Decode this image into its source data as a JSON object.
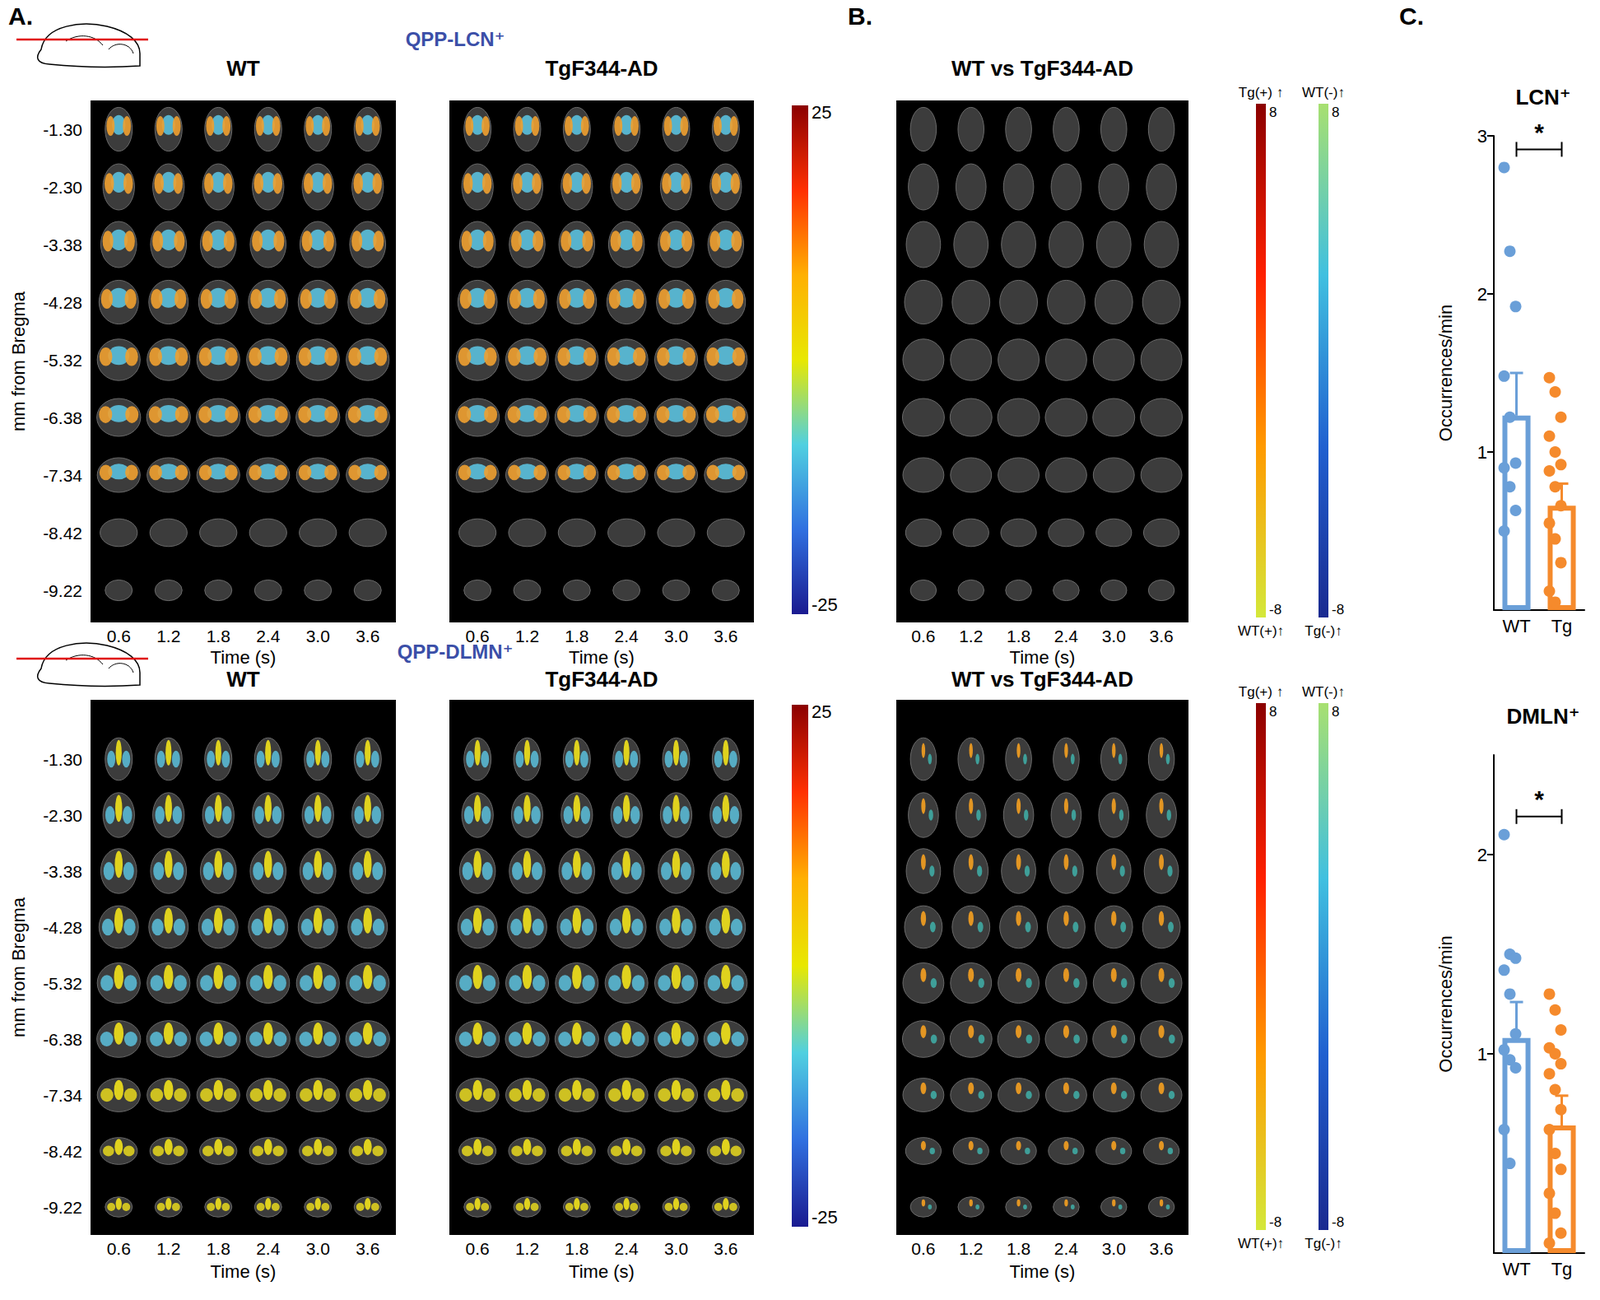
{
  "figure": {
    "panel_labels": [
      "A.",
      "B.",
      "C."
    ],
    "bregma_axis_label": "mm from Bregma",
    "bregma_mm": [
      {
        "value": -1.3,
        "label": "-1.30"
      },
      {
        "value": -2.3,
        "label": "-2.30"
      },
      -3.38,
      -4.28,
      -5.32,
      -6.38,
      -7.34,
      -8.42,
      -9.22
    ],
    "time_label": "Time (s)",
    "time_s": [
      0.6,
      1.2,
      1.8,
      2.4,
      {
        "value": 3.0,
        "label": "3.0"
      },
      3.6
    ],
    "rows": [
      {
        "title": "QPP-LCN⁺",
        "groups": [
          "WT",
          "TgF344-AD"
        ],
        "colorbar": {
          "range": [
            -25,
            25
          ],
          "ticks": [
            -25,
            25
          ]
        },
        "comparison": {
          "title": "WT vs TgF344-AD",
          "colorbar_pos": {
            "range": [
              -8,
              8
            ],
            "ticks": [
              -8,
              8
            ],
            "top_label": "Tg(+) ↑",
            "bottom_label": "WT(+)↑"
          },
          "colorbar_neg": {
            "range": [
              -8,
              8
            ],
            "ticks": [
              -8,
              8
            ],
            "top_label": "WT(-)↑",
            "bottom_label": "Tg(-)↑"
          }
        }
      },
      {
        "title": "QPP-DLMN⁺",
        "groups": [
          "WT",
          "TgF344-AD"
        ],
        "colorbar": {
          "range": [
            -25,
            25
          ],
          "ticks": [
            -25,
            25
          ]
        },
        "comparison": {
          "title": "WT vs TgF344-AD",
          "colorbar_pos": {
            "range": [
              -8,
              8
            ],
            "ticks": [
              -8,
              8
            ],
            "top_label": "Tg(+) ↑",
            "bottom_label": "WT(+)↑"
          },
          "colorbar_neg": {
            "range": [
              -8,
              8
            ],
            "ticks": [
              -8,
              8
            ],
            "top_label": "WT(-)↑",
            "bottom_label": "Tg(-)↑"
          }
        }
      }
    ]
  },
  "chart_data": [
    {
      "type": "bar",
      "title": "LCN⁺",
      "categories": [
        "WT",
        "Tg"
      ],
      "values": [
        1.23,
        0.66
      ],
      "errors": [
        0.27,
        0.14
      ],
      "colors": [
        "#6a9fd8",
        "#f58a2c"
      ],
      "points": [
        [
          2.8,
          2.27,
          1.92,
          1.48,
          1.22,
          0.93,
          0.9,
          0.78,
          0.63,
          0.5
        ],
        [
          1.47,
          1.38,
          1.22,
          1.1,
          1.0,
          0.92,
          0.88,
          0.78,
          0.66,
          0.55,
          0.45,
          0.3,
          0.12,
          0.05
        ]
      ],
      "y_label": "Occurrences/min",
      "ylim": [
        0,
        3
      ],
      "yticks": [
        1,
        2,
        3
      ],
      "annotation": "*",
      "grid": false
    },
    {
      "type": "bar",
      "title": "DMLN⁺",
      "categories": [
        "WT",
        "Tg"
      ],
      "values": [
        1.08,
        0.64
      ],
      "errors": [
        0.18,
        0.15
      ],
      "colors": [
        "#6a9fd8",
        "#f58a2c"
      ],
      "points": [
        [
          2.1,
          1.5,
          1.48,
          1.42,
          1.3,
          1.1,
          1.02,
          0.97,
          0.93,
          0.62,
          0.45
        ],
        [
          1.3,
          1.22,
          1.12,
          1.03,
          1.0,
          0.95,
          0.9,
          0.82,
          0.72,
          0.62,
          0.5,
          0.42,
          0.3,
          0.2,
          0.1,
          0.05
        ]
      ],
      "y_label": "Occurrences/min",
      "ylim": [
        0,
        2.5
      ],
      "yticks": [
        1,
        2
      ],
      "annotation": "*",
      "grid": false
    }
  ]
}
